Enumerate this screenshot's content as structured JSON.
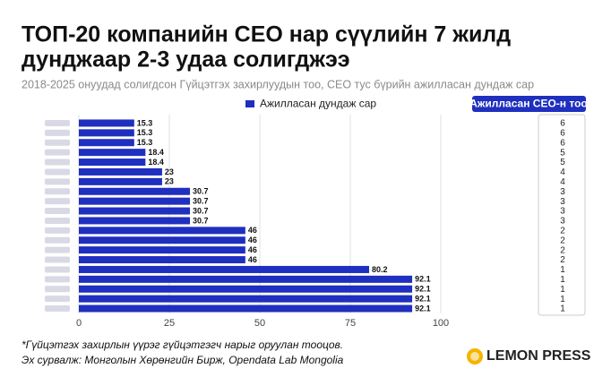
{
  "chart_data": {
    "type": "bar",
    "orientation": "horizontal",
    "title": [
      "ТОП-20 компанийн CEO нар сүүлийн 7 жилд",
      "дунджаар 2-3 удаа солигджээ"
    ],
    "subtitle": "2018-2025 онуудад солигдсон Гүйцэтгэх захирлуудын тоо, CEO тус бүрийн ажилласан дундаж сар",
    "categories": [
      null,
      null,
      null,
      null,
      null,
      null,
      null,
      null,
      null,
      null,
      null,
      null,
      null,
      null,
      null,
      null,
      null,
      null,
      null,
      null
    ],
    "series": [
      {
        "name": "Ажилласан дундаж сар",
        "color": "#1f2fbf",
        "values": [
          15.3,
          15.3,
          15.3,
          18.4,
          18.4,
          23,
          23,
          30.7,
          30.7,
          30.7,
          30.7,
          46,
          46,
          46,
          46,
          80.2,
          92.1,
          92.1,
          92.1,
          92.1
        ]
      }
    ],
    "xlim": [
      0,
      100
    ],
    "xticks": [
      0,
      25,
      50,
      75,
      100
    ],
    "grid": true,
    "table": {
      "header": "Ажилласан CEO-н тоо",
      "values": [
        6,
        6,
        6,
        5,
        5,
        4,
        4,
        3,
        3,
        3,
        3,
        2,
        2,
        2,
        2,
        1,
        1,
        1,
        1,
        1
      ]
    },
    "notes": [
      "*Гүйцэтгэх захирлын үүрэг гүйцэтгэгч нарыг оруулан тооцов.",
      "Эх сурвалж: Монголын Хөрөнгийн Бирж, Opendata Lab Mongolia"
    ],
    "brand": "LEMON PRESS"
  }
}
